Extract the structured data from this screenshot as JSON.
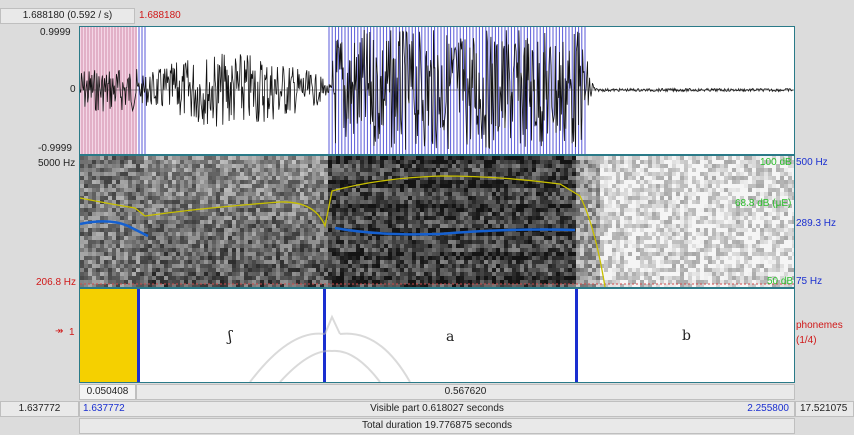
{
  "cursor_readout": "1.688180 (0.592 / s)",
  "cursor_time": "1.688180",
  "waveform": {
    "max_label": "0.9999",
    "zero_label": "0",
    "min_label": "-0.9999"
  },
  "spectrogram": {
    "top_freq": "5000 Hz",
    "bottom_left_freq": "206.8 Hz",
    "intensity_max": "100 dB",
    "pitch_max": "500 Hz",
    "intensity_value": "68.8 dB (μE)",
    "pitch_value": "289.3 Hz",
    "intensity_min": "50 dB",
    "pitch_min": "75 Hz"
  },
  "tier": {
    "number": "1",
    "name": "phonemes",
    "count": "(1/4)",
    "intervals": [
      {
        "text": ""
      },
      {
        "text": "ʃ"
      },
      {
        "text": "a"
      },
      {
        "text": "b"
      }
    ]
  },
  "selection": {
    "left_duration": "0.050408",
    "right_duration": "0.567620"
  },
  "footer": {
    "total_start": "1.637772",
    "visible_start": "1.637772",
    "visible_part": "Visible part 0.618027 seconds",
    "visible_end": "2.255800",
    "total_end": "17.521075",
    "total_duration": "Total duration 19.776875 seconds"
  },
  "colors": {
    "selection": "#f5d000",
    "boundary": "#1a2fd0",
    "pitch": "#1560d0",
    "intensity": "#c8c000",
    "marker": "#d01818"
  }
}
